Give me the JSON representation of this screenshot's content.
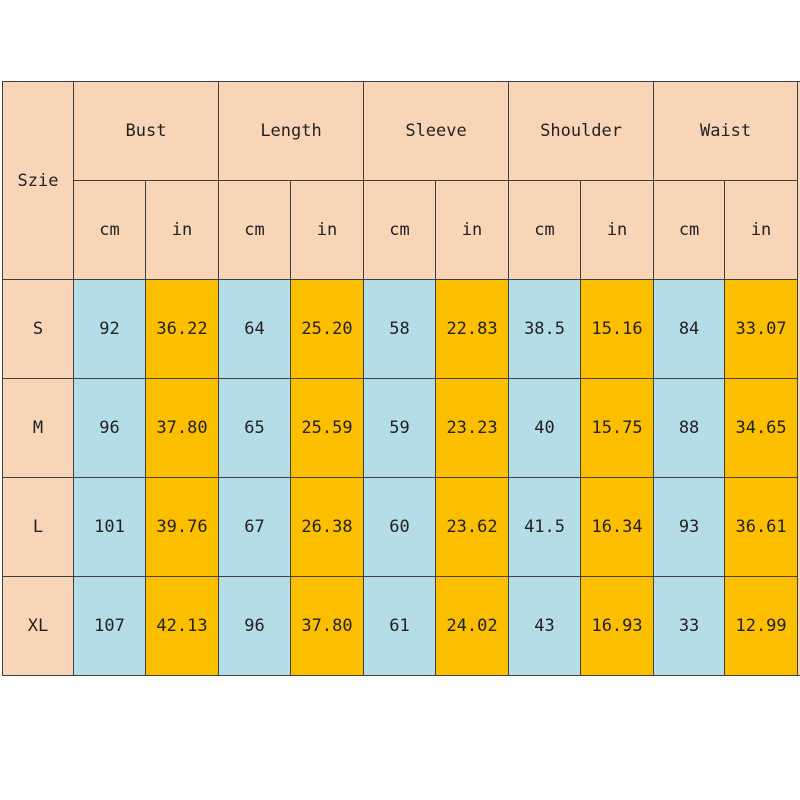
{
  "table": {
    "corner_label": "Szie",
    "groups": [
      {
        "label": "Bust"
      },
      {
        "label": "Length"
      },
      {
        "label": "Sleeve"
      },
      {
        "label": "Shoulder"
      },
      {
        "label": "Waist"
      }
    ],
    "unit_cm": "cm",
    "unit_in": "in",
    "rows": [
      {
        "size": "S",
        "values": [
          "92",
          "36.22",
          "64",
          "25.20",
          "58",
          "22.83",
          "38.5",
          "15.16",
          "84",
          "33.07"
        ]
      },
      {
        "size": "M",
        "values": [
          "96",
          "37.80",
          "65",
          "25.59",
          "59",
          "23.23",
          "40",
          "15.75",
          "88",
          "34.65"
        ]
      },
      {
        "size": "L",
        "values": [
          "101",
          "39.76",
          "67",
          "26.38",
          "60",
          "23.62",
          "41.5",
          "16.34",
          "93",
          "36.61"
        ]
      },
      {
        "size": "XL",
        "values": [
          "107",
          "42.13",
          "96",
          "37.80",
          "61",
          "24.02",
          "43",
          "16.93",
          "33",
          "12.99"
        ]
      }
    ]
  }
}
